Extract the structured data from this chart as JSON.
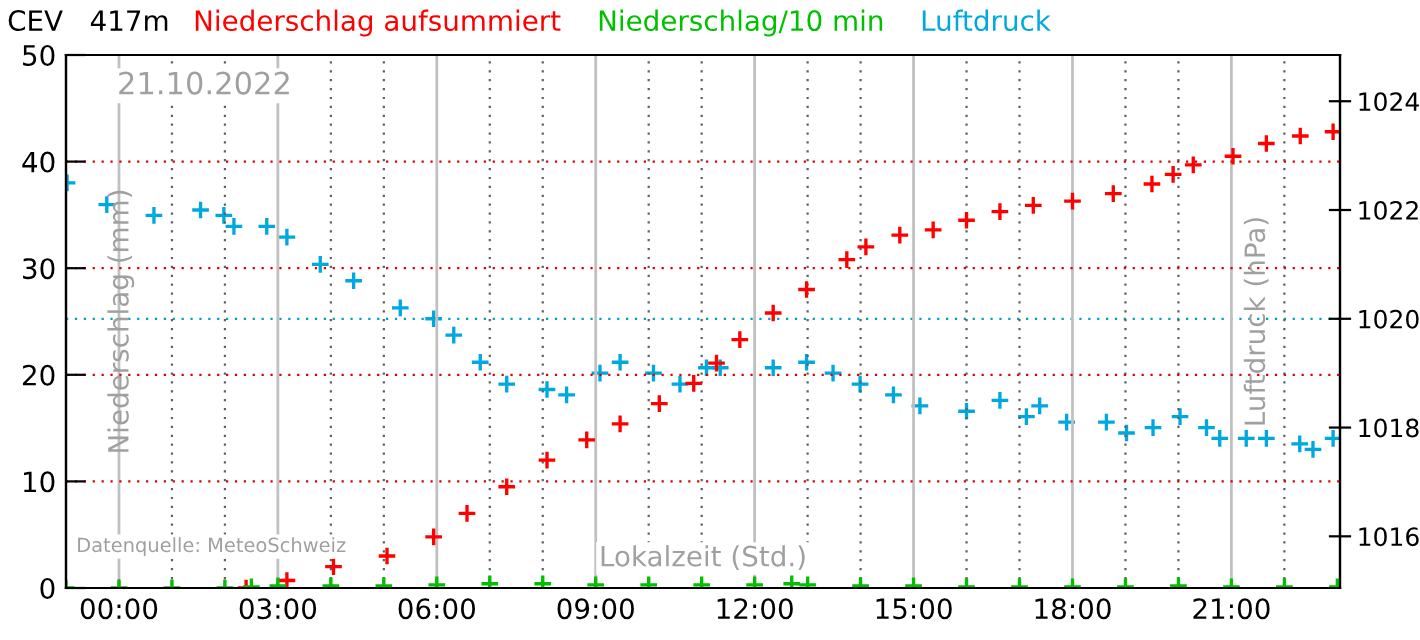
{
  "chart_data": {
    "type": "scatter",
    "title": "CEV   417m",
    "xlabel": "Lokalzeit (Std.)",
    "ylabel": "Niederschlag (mm)",
    "y2label": "Luftdruck (hPa)",
    "annotations": [
      "21.10.2022",
      "Datenquelle: MeteoSchweiz"
    ],
    "xlim": [
      -1,
      23.05
    ],
    "xticks": [
      {
        "value": 0,
        "label": "00:00"
      },
      {
        "value": 1,
        "label": null
      },
      {
        "value": 2,
        "label": null
      },
      {
        "value": 3,
        "label": "03:00"
      },
      {
        "value": 4,
        "label": null
      },
      {
        "value": 5,
        "label": null
      },
      {
        "value": 6,
        "label": "06:00"
      },
      {
        "value": 7,
        "label": null
      },
      {
        "value": 8,
        "label": null
      },
      {
        "value": 9,
        "label": "09:00"
      },
      {
        "value": 10,
        "label": null
      },
      {
        "value": 11,
        "label": null
      },
      {
        "value": 12,
        "label": "12:00"
      },
      {
        "value": 13,
        "label": null
      },
      {
        "value": 14,
        "label": null
      },
      {
        "value": 15,
        "label": "15:00"
      },
      {
        "value": 16,
        "label": null
      },
      {
        "value": 17,
        "label": null
      },
      {
        "value": 18,
        "label": "18:00"
      },
      {
        "value": 19,
        "label": null
      },
      {
        "value": 20,
        "label": null
      },
      {
        "value": 21,
        "label": "21:00"
      },
      {
        "value": 22,
        "label": null
      }
    ],
    "ylim": [
      0,
      50
    ],
    "yticks": [
      0,
      10,
      20,
      30,
      40,
      50
    ],
    "y2lim": [
      1015.05,
      1024.85
    ],
    "y2ticks": [
      1016,
      1018,
      1020,
      1022,
      1024
    ],
    "grid": true,
    "marker": "cross",
    "ref_lines": [
      {
        "axis": "y2",
        "value": 1020,
        "color": "#00a0c0",
        "line_style": "dotted"
      }
    ],
    "series": [
      {
        "name": "Niederschlag aufsummiert",
        "color": "#ff0000",
        "x": [
          2.4,
          3.17,
          4.05,
          5.06,
          5.94,
          6.57,
          7.32,
          8.08,
          8.83,
          9.46,
          10.2,
          10.85,
          11.28,
          11.72,
          12.35,
          12.98,
          13.74,
          14.1,
          14.74,
          15.37,
          16.0,
          16.63,
          17.26,
          18.0,
          18.77,
          19.5,
          19.9,
          20.28,
          21.03,
          21.66,
          22.3,
          22.92
        ],
        "values": [
          0,
          0.7,
          2.0,
          3.0,
          4.8,
          7.0,
          9.5,
          12.0,
          13.9,
          15.4,
          17.3,
          19.2,
          21.1,
          23.3,
          25.8,
          28.0,
          30.8,
          32.0,
          33.1,
          33.6,
          34.5,
          35.3,
          35.9,
          36.3,
          37.0,
          37.9,
          38.8,
          39.7,
          40.5,
          41.7,
          42.4,
          42.8
        ]
      },
      {
        "name": "Niederschlag/10 min",
        "color": "#00c000",
        "x": [
          -1,
          0,
          1,
          2,
          2.5,
          3,
          4,
          5,
          6,
          7,
          8,
          9,
          10,
          11,
          12,
          12.7,
          13,
          14,
          15,
          16,
          17,
          18,
          19,
          20,
          21,
          22,
          23
        ],
        "values": [
          0,
          0,
          0,
          0,
          0.1,
          0.2,
          0.2,
          0.2,
          0.3,
          0.4,
          0.4,
          0.3,
          0.3,
          0.3,
          0.3,
          0.4,
          0.3,
          0.2,
          0.2,
          0.1,
          0.1,
          0.1,
          0.1,
          0.2,
          0.1,
          0.1,
          0.1
        ]
      },
      {
        "name": "Luftdruck",
        "color": "#00a8e0",
        "axis": "y2",
        "x": [
          -0.98,
          -0.23,
          0.66,
          1.54,
          1.98,
          2.17,
          2.79,
          3.17,
          3.8,
          4.43,
          5.31,
          5.94,
          6.32,
          6.82,
          7.32,
          8.08,
          8.45,
          9.08,
          9.46,
          10.09,
          10.59,
          11.09,
          11.35,
          12.35,
          12.98,
          13.48,
          13.99,
          14.62,
          15.12,
          16.0,
          16.63,
          17.13,
          17.38,
          17.89,
          18.64,
          19.02,
          19.52,
          20.03,
          20.53,
          20.78,
          21.28,
          21.66,
          22.29,
          22.54,
          22.92
        ],
        "values": [
          1022.5,
          1022.1,
          1021.9,
          1022.0,
          1021.9,
          1021.7,
          1021.7,
          1021.5,
          1021.0,
          1020.7,
          1020.2,
          1020.0,
          1019.7,
          1019.2,
          1018.8,
          1018.7,
          1018.6,
          1019.0,
          1019.2,
          1019.0,
          1018.8,
          1019.1,
          1019.1,
          1019.1,
          1019.2,
          1019.0,
          1018.8,
          1018.6,
          1018.4,
          1018.3,
          1018.5,
          1018.2,
          1018.4,
          1018.1,
          1018.1,
          1017.9,
          1018.0,
          1018.2,
          1018.0,
          1017.8,
          1017.8,
          1017.8,
          1017.7,
          1017.6,
          1017.8
        ]
      }
    ]
  }
}
